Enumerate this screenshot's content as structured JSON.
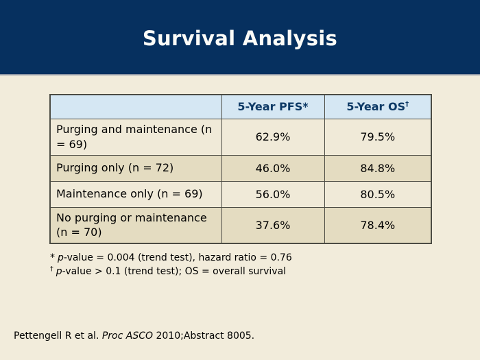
{
  "slide": {
    "title": "Survival Analysis"
  },
  "colors": {
    "band_navy": "#06305f",
    "band_edge_gray": "#8e96a4",
    "header_blue": "#d5e7f3",
    "header_text_navy": "#0e3a66",
    "row_light_cream": "#f0ead8",
    "row_dark_tan": "#e4dcc1",
    "page_cream": "#f2ecdb",
    "table_border": "#4b4b43"
  },
  "table": {
    "headers": {
      "col1": "",
      "pfs": "5-Year PFS*",
      "os_base": "5-Year OS",
      "os_sup": "†"
    },
    "rows": [
      {
        "label": "Purging and maintenance (n = 69)",
        "pfs": "62.9%",
        "os": "79.5%"
      },
      {
        "label": "Purging only (n = 72)",
        "pfs": "46.0%",
        "os": "84.8%"
      },
      {
        "label": "Maintenance only (n = 69)",
        "pfs": "56.0%",
        "os": "80.5%"
      },
      {
        "label": "No purging or maintenance (n = 70)",
        "pfs": "37.6%",
        "os": "78.4%"
      }
    ]
  },
  "footnotes": [
    {
      "marker": "*",
      "italic": "p",
      "rest": "-value = 0.004 (trend test), hazard ratio = 0.76"
    },
    {
      "marker": "†",
      "italic": "p",
      "rest": "-value > 0.1 (trend test); OS = overall survival"
    }
  ],
  "citation": {
    "pre": "Pettengell R et al. ",
    "italic": "Proc ASCO",
    "post": " 2010;Abstract 8005."
  }
}
